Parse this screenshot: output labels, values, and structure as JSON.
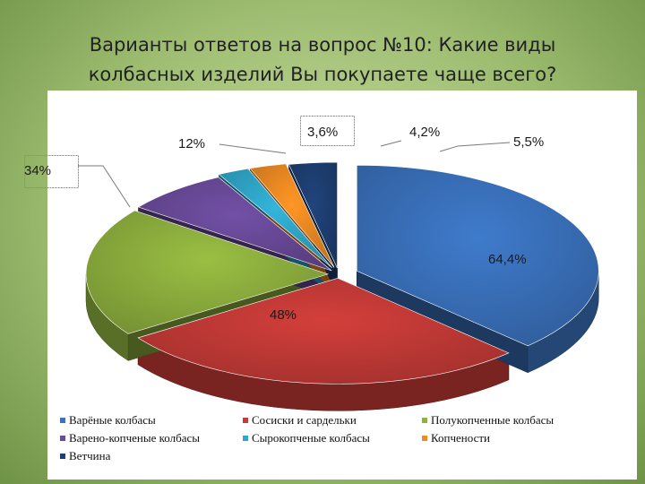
{
  "title": {
    "line1": "Варианты ответов на вопрос №10: Какие виды",
    "line2": "колбасных изделий Вы покупаете чаще всего?"
  },
  "chart_data": {
    "type": "pie",
    "style": "3d-exploded",
    "legend_position": "bottom",
    "slices": [
      {
        "name": "Варёные колбасы",
        "label": "64,4%",
        "value": 64.4,
        "color": "#3a72bd"
      },
      {
        "name": "Сосиски и сардельки",
        "label": "48%",
        "value": 48,
        "color": "#c43a37"
      },
      {
        "name": "Полукопченные колбасы",
        "label": "34%",
        "value": 34,
        "color": "#8fb13e"
      },
      {
        "name": "Варено-копченые колбасы",
        "label": "12%",
        "value": 12,
        "color": "#6a4a9a"
      },
      {
        "name": "Сырокопченые колбасы",
        "label": "3,6%",
        "value": 3.6,
        "color": "#2fa8cc"
      },
      {
        "name": "Копчености",
        "label": "4,2%",
        "value": 4.2,
        "color": "#ee8b22"
      },
      {
        "name": "Ветчина",
        "label": "5,5%",
        "value": 5.5,
        "color": "#1e3f73"
      }
    ]
  }
}
